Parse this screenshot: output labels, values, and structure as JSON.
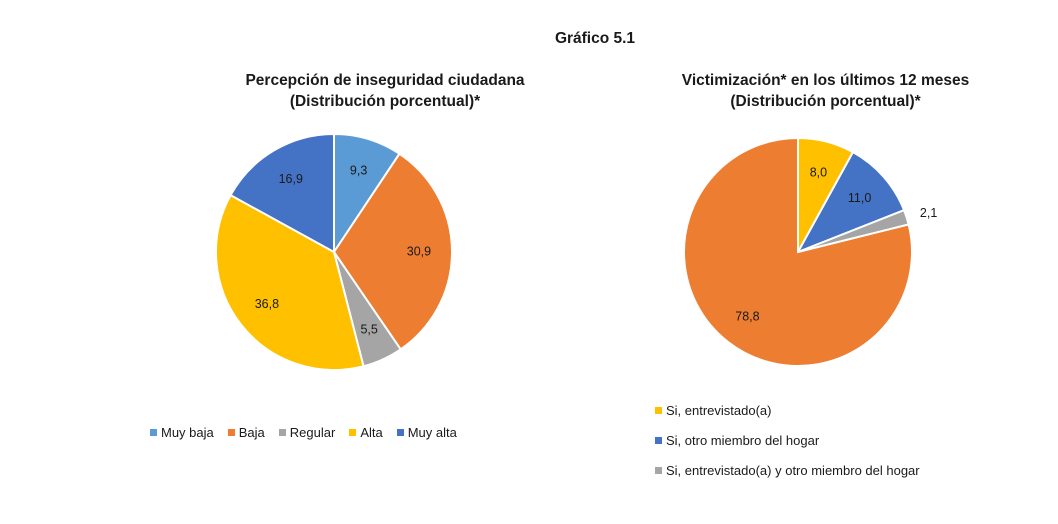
{
  "page": {
    "title": "Gráfico 5.1"
  },
  "chart_data": [
    {
      "type": "pie",
      "title_line1": "Percepción de inseguridad ciudadana",
      "title_line2": "(Distribución porcentual)*",
      "categories": [
        "Muy baja",
        "Baja",
        "Regular",
        "Alta",
        "Muy alta"
      ],
      "values": [
        9.3,
        30.9,
        5.5,
        36.8,
        16.9
      ],
      "labels": [
        "9,3",
        "30,9",
        "5,5",
        "36,8",
        "16,9"
      ],
      "colors": [
        "#5B9BD5",
        "#ED7D31",
        "#A5A5A5",
        "#FFC000",
        "#4472C4"
      ],
      "legend_position": "bottom"
    },
    {
      "type": "pie",
      "title_line1": "Victimización* en los últimos 12 meses",
      "title_line2": "(Distribución porcentual)*",
      "categories": [
        "Si, entrevistado(a)",
        "Si, otro miembro del hogar",
        "Si, entrevistado(a) y otro miembro del hogar",
        ""
      ],
      "legend_items": [
        "Si, entrevistado(a)",
        "Si, otro miembro del hogar",
        "Si, entrevistado(a) y otro miembro del hogar"
      ],
      "values": [
        8.0,
        11.0,
        2.1,
        78.8
      ],
      "labels": [
        "8,0",
        "11,0",
        "2,1",
        "78,8"
      ],
      "colors": [
        "#FFC000",
        "#4472C4",
        "#A5A5A5",
        "#ED7D31"
      ],
      "legend_position": "bottom"
    }
  ]
}
